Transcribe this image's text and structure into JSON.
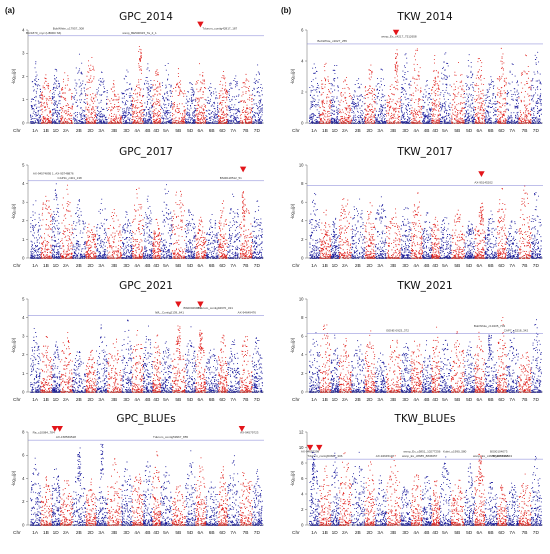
{
  "figure": {
    "panel_letters": [
      "(a)",
      "(b)"
    ],
    "ylabel": "-log₁₀(p)",
    "x_first_label": "Chr",
    "chromosomes": [
      "1A",
      "1B",
      "1D",
      "2A",
      "2B",
      "2D",
      "3A",
      "3B",
      "3D",
      "4A",
      "4B",
      "4D",
      "5A",
      "5B",
      "5D",
      "6A",
      "6B",
      "6D",
      "7A",
      "7B",
      "7D"
    ],
    "colors": {
      "red": "#e0201c",
      "blue": "#15169a",
      "threshold": "#7f7fd6",
      "marker": "#e3151a"
    }
  },
  "chart_data": [
    {
      "type": "scatter",
      "title": "GPC_2014",
      "col": 0,
      "row": 0,
      "ylim": [
        0,
        4
      ],
      "yticks": [
        0,
        1,
        2,
        3,
        4
      ],
      "threshold": 3.75,
      "annotations": [
        {
          "label": "BA/1870_myc (HB060 S6)",
          "chr": 1,
          "pos": 0.3
        },
        {
          "label": "BobWhite_c17957_308",
          "chr": 3,
          "pos": 0.7
        },
        {
          "label": "wsnp_BE500915_Ta_2_1",
          "chr": 9,
          "pos": 0.7
        },
        {
          "label": "Tdurum_contig42817_187",
          "chr": 17,
          "pos": 0.2
        }
      ],
      "markers": [
        {
          "chr": 15,
          "pos": 0.5
        }
      ],
      "peaks": [
        {
          "chr": 9,
          "pos": 0.7,
          "value": 3.4
        }
      ]
    },
    {
      "type": "scatter",
      "title": "TKW_2014",
      "col": 1,
      "row": 0,
      "ylim": [
        0,
        6
      ],
      "yticks": [
        0,
        2,
        4,
        6
      ],
      "threshold": 5.1,
      "annotations": [
        {
          "label": "BobWhite_c2027_255",
          "chr": 2,
          "pos": 0.2
        },
        {
          "label": "wsnp_Ex_c4217_7512658",
          "chr": 7,
          "pos": 0.9
        }
      ],
      "markers": [
        {
          "chr": 7,
          "pos": 0.7
        }
      ],
      "peaks": [
        {
          "chr": 7,
          "pos": 0.7,
          "value": 4.8
        }
      ]
    },
    {
      "type": "scatter",
      "title": "GPC_2017",
      "col": 0,
      "row": 1,
      "ylim": [
        0,
        5
      ],
      "yticks": [
        0,
        1,
        2,
        3,
        4,
        5
      ],
      "threshold": 4.15,
      "annotations": [
        {
          "label": "CAP11_c401_138",
          "chr": 3,
          "pos": 0.8
        },
        {
          "label": "AX-94574895 1, AX-95748876",
          "chr": 2,
          "pos": 0.2
        },
        {
          "label": "BS00118512_51",
          "chr": 18,
          "pos": 0.3
        }
      ],
      "markers": [
        {
          "chr": 19,
          "pos": 0.3
        }
      ],
      "peaks": [
        {
          "chr": 19,
          "pos": 0.3,
          "value": 3.6
        }
      ]
    },
    {
      "type": "scatter",
      "title": "TKW_2017",
      "col": 1,
      "row": 1,
      "ylim": [
        0,
        10
      ],
      "yticks": [
        0,
        2,
        4,
        6,
        8,
        10
      ],
      "threshold": 7.8,
      "annotations": [
        {
          "label": "AX-95145202",
          "chr": 15,
          "pos": 0.9
        }
      ],
      "markers": [
        {
          "chr": 15,
          "pos": 0.7
        }
      ],
      "peaks": [
        {
          "chr": 15,
          "pos": 0.7,
          "value": 6.0
        }
      ]
    },
    {
      "type": "scatter",
      "title": "GPC_2021",
      "col": 0,
      "row": 2,
      "ylim": [
        0,
        5
      ],
      "yticks": [
        0,
        1,
        2,
        3,
        4,
        5
      ],
      "threshold": 4.1,
      "annotations": [
        {
          "label": "AX-94649476",
          "chr": 19,
          "pos": 0.6
        },
        {
          "label": "BS00029960",
          "chr": 14,
          "pos": 0.7
        },
        {
          "label": "IWL_Contig2139_641",
          "chr": 12,
          "pos": 0.8
        },
        {
          "label": "Tdurum_contig94670_321",
          "chr": 16,
          "pos": 0.8
        }
      ],
      "markers": [
        {
          "chr": 13,
          "pos": 0.5
        },
        {
          "chr": 15,
          "pos": 0.5
        }
      ],
      "peaks": [
        {
          "chr": 13,
          "pos": 0.5,
          "value": 3.6
        },
        {
          "chr": 15,
          "pos": 0.5,
          "value": 3.5
        }
      ]
    },
    {
      "type": "scatter",
      "title": "TKW_2021",
      "col": 1,
      "row": 2,
      "ylim": [
        0,
        10
      ],
      "yticks": [
        0,
        2,
        4,
        6,
        8,
        10
      ],
      "threshold": 6.3,
      "annotations": [
        {
          "label": "GENE-0923_372",
          "chr": 7,
          "pos": 0.8
        },
        {
          "label": "BobWhite_c13435_703",
          "chr": 16,
          "pos": 0.4
        },
        {
          "label": "CAP7_c3218_342",
          "chr": 18,
          "pos": 0.8
        }
      ],
      "markers": [],
      "peaks": [
        {
          "chr": 16,
          "pos": 0.4,
          "value": 6.2
        }
      ]
    },
    {
      "type": "scatter",
      "title": "GPC_BLUEs",
      "col": 0,
      "row": 3,
      "ylim": [
        0,
        8
      ],
      "yticks": [
        0,
        2,
        4,
        6,
        8
      ],
      "threshold": 7.3,
      "annotations": [
        {
          "label": "Tdurum_contig59967_855",
          "chr": 12,
          "pos": 0.9
        },
        {
          "label": "Ra_c10084_784",
          "chr": 1,
          "pos": 0.3
        },
        {
          "label": "AX-158569528",
          "chr": 3,
          "pos": 0.5
        },
        {
          "label": "AX-94579723",
          "chr": 19,
          "pos": 0.8
        }
      ],
      "markers": [
        {
          "chr": 2,
          "pos": 0.4
        },
        {
          "chr": 3,
          "pos": 0.0
        },
        {
          "chr": 19,
          "pos": 0.2
        }
      ],
      "peaks": [
        {
          "chr": 6,
          "pos": 0.5,
          "value": 7.0
        },
        {
          "chr": 4,
          "pos": 0.5,
          "value": 6.8
        }
      ]
    },
    {
      "type": "scatter",
      "title": "TKW_BLUEs",
      "col": 1,
      "row": 3,
      "ylim": [
        0,
        12
      ],
      "yticks": [
        0,
        2,
        4,
        6,
        8,
        10,
        12
      ],
      "threshold": 8.5,
      "annotations": [
        {
          "label": "Tdurum_contig50667_306",
          "chr": 1,
          "pos": 0.5
        },
        {
          "label": "AX-94653398",
          "chr": 0,
          "pos": 0.1
        },
        {
          "label": "AX-94645118",
          "chr": 6,
          "pos": 0.9
        },
        {
          "label": "wsnp_Ex_c5851_10277256",
          "chr": 10,
          "pos": 0.0
        },
        {
          "label": "wsnp_Ex_c8685_8836657",
          "chr": 9,
          "pos": 0.8
        },
        {
          "label": "Kukri_c1990_580",
          "chr": 13,
          "pos": 0.3
        },
        {
          "label": "wsnp_Ex_c4680_4055358",
          "chr": 16,
          "pos": 0.5
        },
        {
          "label": "BS00104073",
          "chr": 17,
          "pos": 0.2
        },
        {
          "label": "BS00021A543",
          "chr": 17,
          "pos": 0.6
        }
      ],
      "markers": [
        {
          "chr": 0,
          "pos": 0.1
        },
        {
          "chr": 1,
          "pos": 0.0
        }
      ],
      "peaks": [
        {
          "chr": 0,
          "pos": 0.4,
          "value": 9.5
        },
        {
          "chr": 15,
          "pos": 0.5,
          "value": 9.2
        }
      ]
    }
  ]
}
